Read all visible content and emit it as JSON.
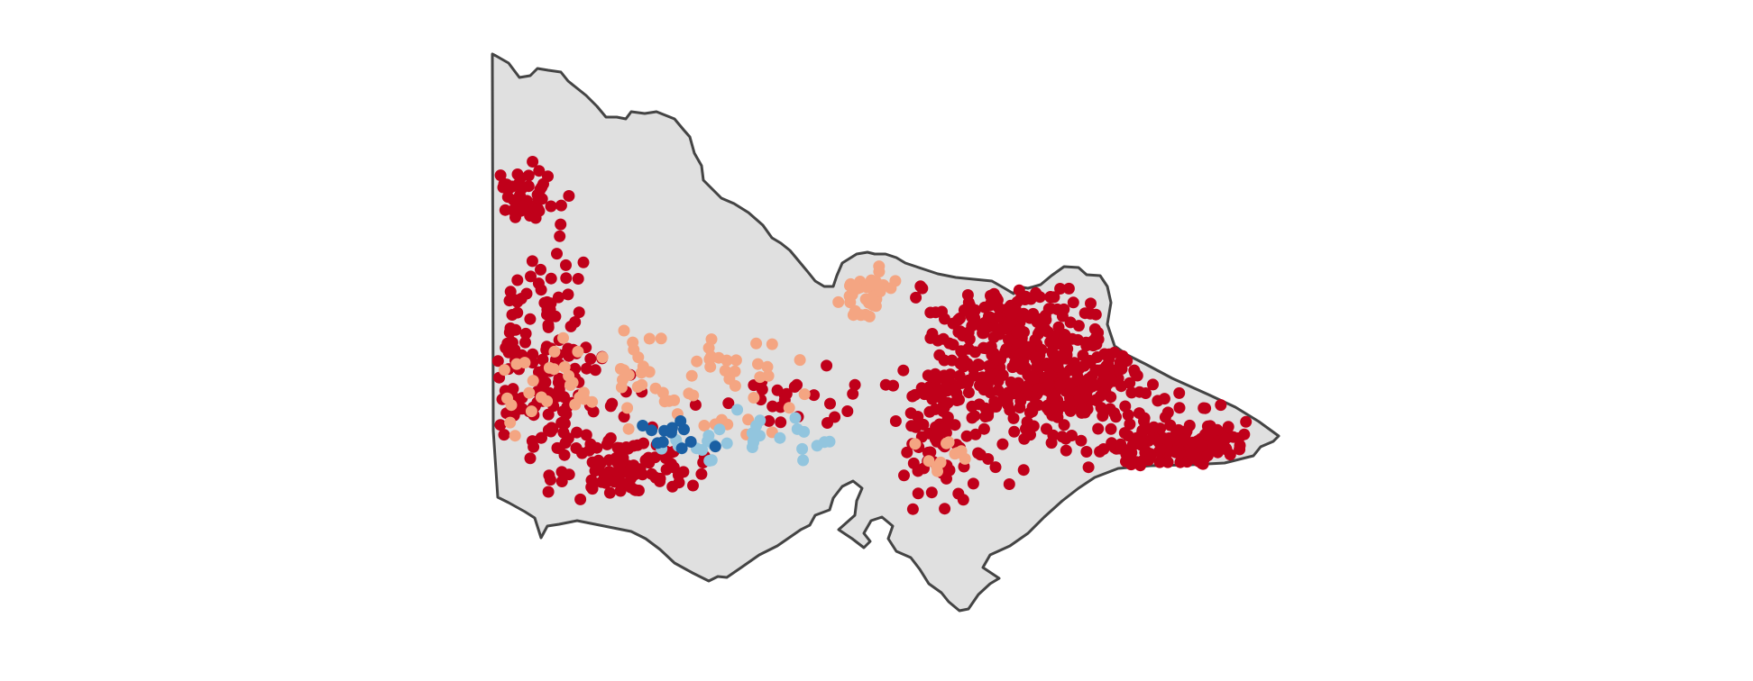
{
  "map": {
    "region": "Victoria",
    "fill_color": "#e0e0e0",
    "outline_color": "#444444",
    "background_color": "#ffffff"
  },
  "legend": {
    "shown": false
  },
  "point_categories": [
    {
      "key": "dark_red",
      "color": "#c0001a"
    },
    {
      "key": "light_orange",
      "color": "#f4a582"
    },
    {
      "key": "light_blue",
      "color": "#92c5de"
    },
    {
      "key": "dark_blue",
      "color": "#1a5fa3"
    }
  ],
  "clusters": [
    {
      "category": "dark_red",
      "count": 45,
      "spread": [
        35,
        25
      ],
      "center": [
        141.4,
        -35.3
      ]
    },
    {
      "category": "dark_red",
      "count": 50,
      "spread": [
        45,
        60
      ],
      "center": [
        141.5,
        -36.4
      ]
    },
    {
      "category": "dark_red",
      "count": 110,
      "spread": [
        75,
        75
      ],
      "center": [
        141.5,
        -37.1
      ]
    },
    {
      "category": "dark_red",
      "count": 95,
      "spread": [
        65,
        30
      ],
      "center": [
        142.5,
        -37.8
      ]
    },
    {
      "category": "dark_red",
      "count": 210,
      "spread": [
        75,
        80
      ],
      "center": [
        146.8,
        -36.6
      ]
    },
    {
      "category": "dark_red",
      "count": 260,
      "spread": [
        90,
        60
      ],
      "center": [
        147.6,
        -37.0
      ]
    },
    {
      "category": "dark_red",
      "count": 140,
      "spread": [
        70,
        25
      ],
      "center": [
        148.8,
        -37.6
      ]
    },
    {
      "category": "dark_red",
      "count": 90,
      "spread": [
        40,
        75
      ],
      "center": [
        146.1,
        -37.4
      ]
    },
    {
      "category": "dark_red",
      "count": 25,
      "spread": [
        60,
        30
      ],
      "center": [
        144.4,
        -37.2
      ]
    },
    {
      "category": "light_orange",
      "count": 55,
      "spread": [
        90,
        50
      ],
      "center": [
        143.3,
        -37.0
      ]
    },
    {
      "category": "light_orange",
      "count": 35,
      "spread": [
        30,
        25
      ],
      "center": [
        145.3,
        -36.2
      ]
    },
    {
      "category": "light_orange",
      "count": 30,
      "spread": [
        70,
        35
      ],
      "center": [
        141.6,
        -37.0
      ]
    },
    {
      "category": "light_orange",
      "count": 12,
      "spread": [
        25,
        25
      ],
      "center": [
        146.2,
        -37.7
      ]
    },
    {
      "category": "light_blue",
      "count": 22,
      "spread": [
        60,
        25
      ],
      "center": [
        143.5,
        -37.6
      ]
    },
    {
      "category": "light_blue",
      "count": 8,
      "spread": [
        25,
        30
      ],
      "center": [
        144.6,
        -37.6
      ]
    },
    {
      "category": "dark_blue",
      "count": 12,
      "spread": [
        50,
        20
      ],
      "center": [
        143.0,
        -37.5
      ]
    }
  ]
}
